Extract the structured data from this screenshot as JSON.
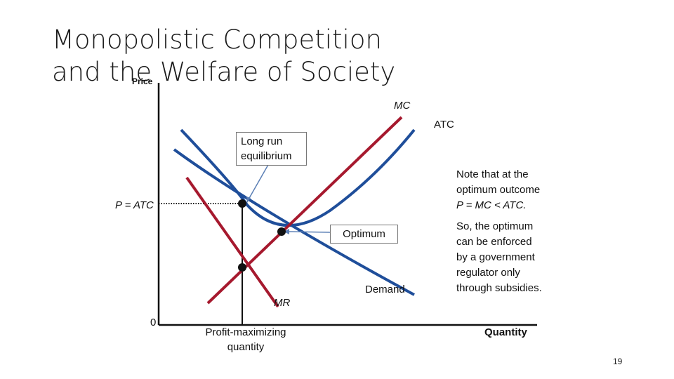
{
  "slide": {
    "title_line1": "Monopolistic Competition",
    "title_line2": "and the Welfare of Society",
    "page_number": "19"
  },
  "diagram": {
    "y_axis_label": "Price",
    "x_axis_label": "Quantity",
    "origin_label": "0",
    "price_level_label": "P = ATC",
    "quantity_label_line1": "Profit-maximizing",
    "quantity_label_line2": "quantity",
    "curves": {
      "mc": "MC",
      "atc": "ATC",
      "mr": "MR",
      "demand": "Demand"
    },
    "callouts": {
      "long_run_line1": "Long run",
      "long_run_line2": "equilibrium",
      "optimum": "Optimum"
    },
    "colors": {
      "blue_curves": "#1f4e9a",
      "red_curves": "#a6192e",
      "axes": "#111111",
      "callout_arrow": "#5b7fb5"
    }
  },
  "notes": {
    "note1_line1": "Note that at the",
    "note1_line2": "optimum outcome",
    "note1_line3": "P = MC < ATC.",
    "note2_line1": "So, the optimum",
    "note2_line2": "can be enforced",
    "note2_line3": "by a government",
    "note2_line4": "regulator only",
    "note2_line5": "through subsidies."
  }
}
